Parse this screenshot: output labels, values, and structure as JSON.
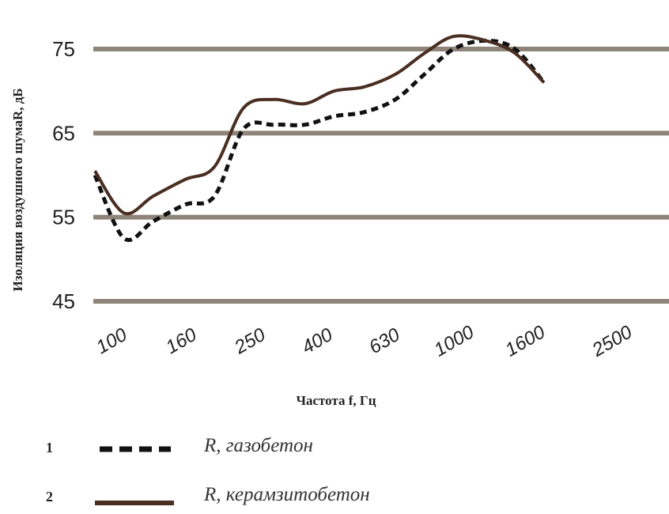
{
  "chart_data": {
    "type": "line",
    "ylabel": "Изоляция воздушного шумаR, дБ",
    "xlabel": "Частота f, Гц",
    "ylim": [
      45,
      75
    ],
    "yticks": [
      45,
      55,
      65,
      75
    ],
    "x_tick_labels": [
      "100",
      "160",
      "250",
      "400",
      "630",
      "1000",
      "1600",
      "2500"
    ],
    "grid": "horizontal",
    "x": [
      80,
      100,
      125,
      160,
      200,
      250,
      315,
      400,
      500,
      630,
      800,
      1000,
      1250,
      1600,
      2000,
      2500
    ],
    "series": [
      {
        "id": "1",
        "name": "R, газобетон",
        "style": "dashed",
        "color": "#111111",
        "values": [
          60,
          52.5,
          54.5,
          56.5,
          57.5,
          65.5,
          66,
          66,
          67,
          67.5,
          69,
          72,
          75,
          76,
          75,
          71
        ]
      },
      {
        "id": "2",
        "name": "R, керамзитобетон",
        "style": "solid",
        "color": "#4a2e22",
        "values": [
          60.5,
          55.5,
          57.5,
          59.5,
          61,
          68,
          69,
          68.5,
          70,
          70.5,
          72,
          74.5,
          76.5,
          76,
          74.5,
          71
        ]
      }
    ]
  },
  "legend": {
    "items": [
      {
        "number": "1",
        "label": "R, газобетон"
      },
      {
        "number": "2",
        "label": "R, керамзитобетон"
      }
    ]
  }
}
